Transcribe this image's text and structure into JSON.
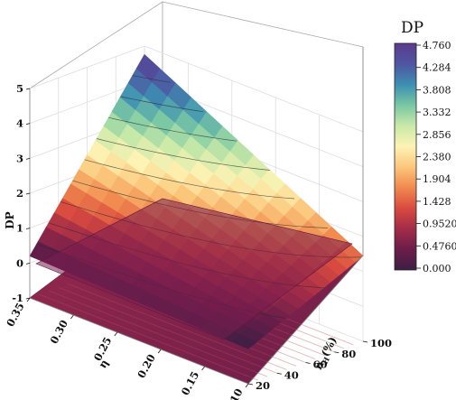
{
  "chart_data": {
    "type": "surface",
    "zlabel": "DP",
    "xlabel": "η",
    "ylabel_main": "n",
    "ylabel_sub": "H",
    "ylabel_unit": "(%)",
    "x_ticks": [
      "0.35",
      "0.30",
      "0.25",
      "0.20",
      "0.15",
      "0.10"
    ],
    "y_ticks": [
      "20",
      "40",
      "60",
      "80",
      "100"
    ],
    "z_ticks": [
      "-1",
      "0",
      "1",
      "2",
      "3",
      "4",
      "5"
    ],
    "zlim": [
      -1,
      5
    ],
    "xlim": [
      0.1,
      0.35
    ],
    "ylim": [
      20,
      100
    ],
    "surface": {
      "eta": [
        0.35,
        0.1
      ],
      "nH": [
        20,
        100
      ],
      "dp": [
        [
          0.2,
          0.0
        ],
        [
          4.76,
          1.45
        ]
      ]
    },
    "flat_plane_dp": 0,
    "colorbar": {
      "title": "DP",
      "min": 0,
      "max": 4.76,
      "tick_labels": [
        "4.760",
        "4.284",
        "3.808",
        "3.332",
        "2.856",
        "2.380",
        "1.904",
        "1.428",
        "0.9520",
        "0.4760",
        "0.000"
      ],
      "colors": [
        "#3c1f44",
        "#6b1d4a",
        "#a32c48",
        "#d94b3f",
        "#f18a4f",
        "#fbc77c",
        "#fdf3b4",
        "#c9e9a8",
        "#79c7a4",
        "#3d8fb3",
        "#4f55a2",
        "#5b3b8c"
      ]
    }
  }
}
